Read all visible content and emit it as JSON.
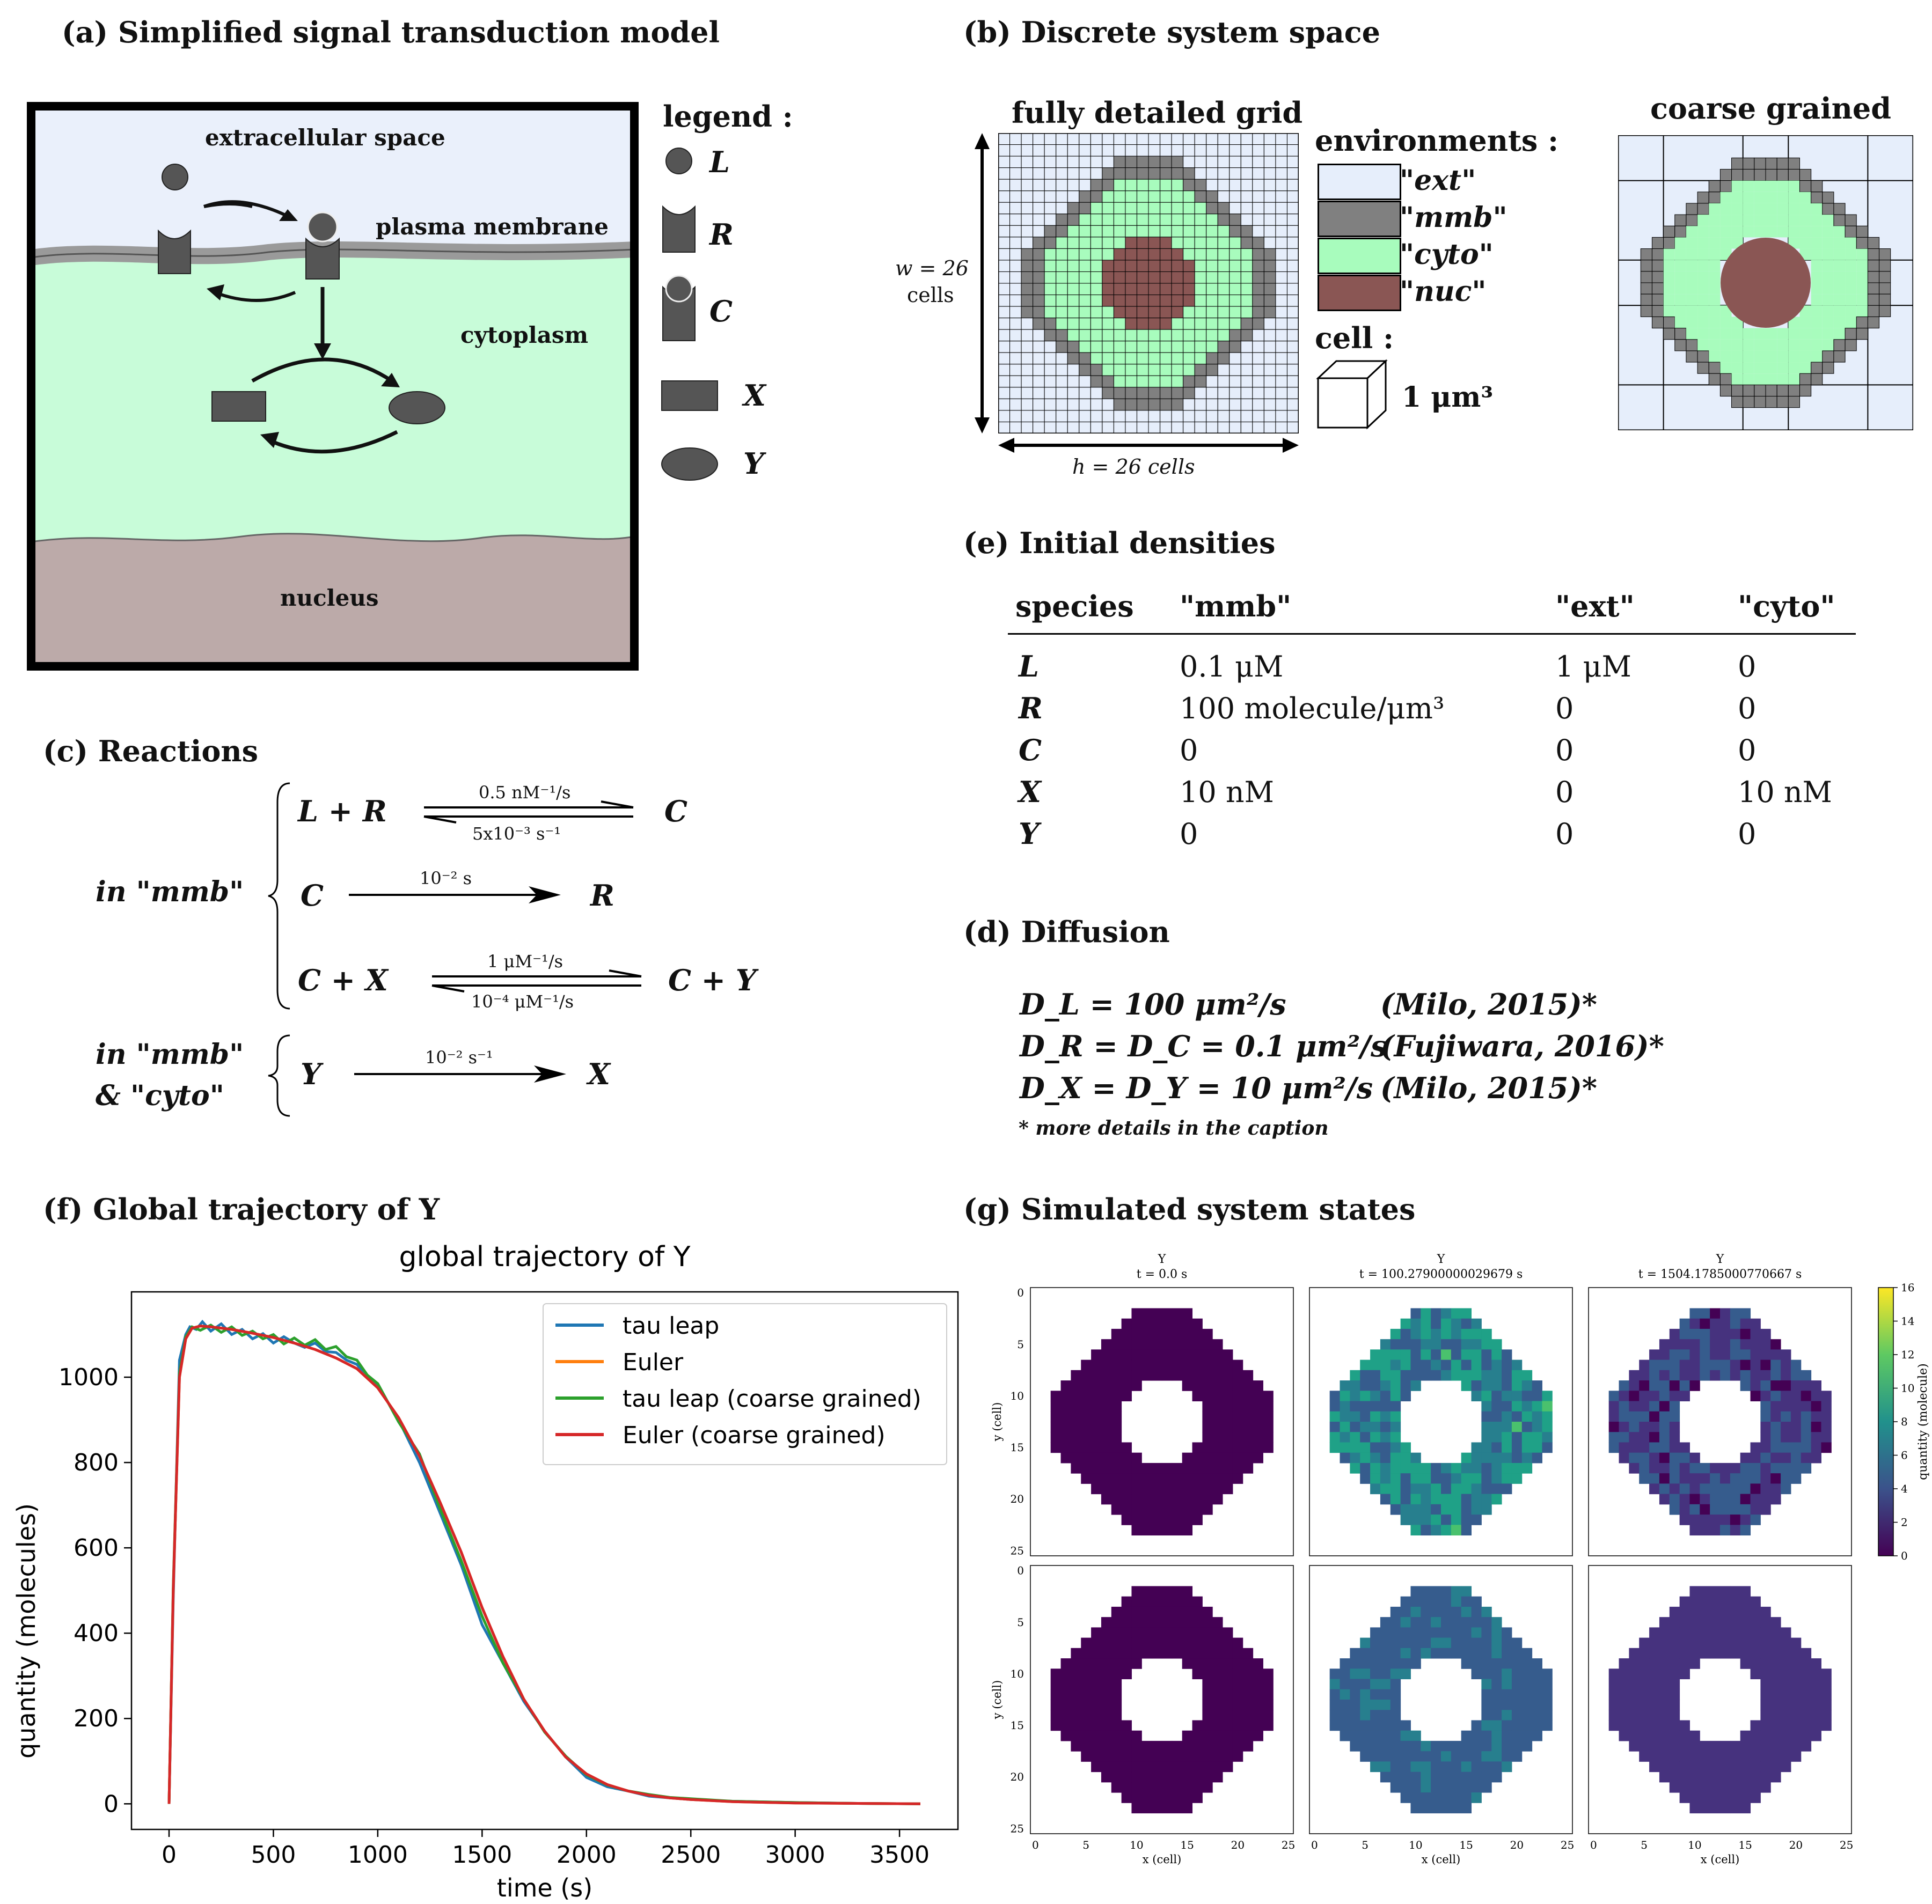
{
  "panels": {
    "a": {
      "title": "(a) Simplified signal transduction model",
      "regions": [
        "extracellular space",
        "plasma membrane",
        "cytoplasm",
        "nucleus"
      ],
      "legend_title": "legend :",
      "legend": [
        "L",
        "R",
        "C",
        "X",
        "Y"
      ],
      "colors": {
        "extracellular": "#eaf0fb",
        "cytoplasm": "#c8fcd9",
        "nucleus": "#bcaaa9",
        "membrane": "#9a9a9a",
        "molecule": "#555555"
      }
    },
    "b": {
      "title": "(b) Discrete system space",
      "grid_title": "fully detailed grid",
      "coarse_title": "coarse grained",
      "w_label": "w = 26",
      "w_unit": "cells",
      "h_label": "h = 26 cells",
      "env_title": "environments :",
      "environments": [
        {
          "name": "\"ext\"",
          "color": "#e6eefb"
        },
        {
          "name": "\"mmb\"",
          "color": "#808080"
        },
        {
          "name": "\"cyto\"",
          "color": "#a8fcbd"
        },
        {
          "name": "\"nuc\"",
          "color": "#8a5654"
        }
      ],
      "cell_title": "cell :",
      "cell_size": "1 μm³"
    },
    "c": {
      "title": "(c) Reactions",
      "group1": "in \"mmb\"",
      "group2a": "in \"mmb\"",
      "group2b": "& \"cyto\"",
      "reactions": [
        {
          "lhs": "L + R",
          "rhs": "C",
          "fwd": "0.5 nM⁻¹/s",
          "rev": "5x10⁻³ s⁻¹"
        },
        {
          "lhs": "C",
          "rhs": "R",
          "fwd": "10⁻² s",
          "rev": ""
        },
        {
          "lhs": "C + X",
          "rhs": "C + Y",
          "fwd": "1 μM⁻¹/s",
          "rev": "10⁻⁴ μM⁻¹/s"
        },
        {
          "lhs": "Y",
          "rhs": "X",
          "fwd": "10⁻² s⁻¹",
          "rev": ""
        }
      ]
    },
    "e": {
      "title": "(e) Initial densities",
      "columns": [
        "species",
        "\"mmb\"",
        "\"ext\"",
        "\"cyto\""
      ],
      "rows": [
        [
          "L",
          "0.1 μM",
          "1 μM",
          "0"
        ],
        [
          "R",
          "100 molecule/μm³",
          "0",
          "0"
        ],
        [
          "C",
          "0",
          "0",
          "0"
        ],
        [
          "X",
          "10 nM",
          "0",
          "10 nM"
        ],
        [
          "Y",
          "0",
          "0",
          "0"
        ]
      ]
    },
    "d": {
      "title": "(d) Diffusion",
      "lines": [
        {
          "eq": "D_L = 100 μm²/s",
          "ref": "(Milo, 2015)*"
        },
        {
          "eq": "D_R = D_C = 0.1 μm²/s",
          "ref": "(Fujiwara, 2016)*"
        },
        {
          "eq": "D_X = D_Y = 10 μm²/s",
          "ref": "(Milo, 2015)*"
        }
      ],
      "footnote": "* more details in the caption"
    },
    "f": {
      "title": "(f) Global trajectory of Y"
    },
    "g": {
      "title": "(g) Simulated system states",
      "subplot_var": "Y",
      "times": [
        "t = 0.0 s",
        "t = 100.27900000029679 s",
        "t = 1504.1785000770667 s"
      ],
      "xlabel": "x (cell)",
      "ylabel": "y (cell)",
      "ticks": [
        "0",
        "5",
        "10",
        "15",
        "20",
        "25"
      ],
      "colorbar_label": "quantity (molecule)",
      "colorbar_ticks": [
        "0",
        "2",
        "4",
        "6",
        "8",
        "10",
        "12",
        "14",
        "16"
      ]
    }
  },
  "chart_data": {
    "type": "line",
    "title": "global trajectory of Y",
    "xlabel": "time (s)",
    "ylabel": "quantity (molecules)",
    "xlim": [
      -180,
      3780
    ],
    "ylim": [
      -60,
      1200
    ],
    "xticks": [
      0,
      500,
      1000,
      1500,
      2000,
      2500,
      3000,
      3500
    ],
    "yticks": [
      0,
      200,
      400,
      600,
      800,
      1000
    ],
    "legend_position": "top-right",
    "series": [
      {
        "name": "tau leap",
        "color": "#1f77b4",
        "x": [
          0,
          20,
          50,
          80,
          100,
          130,
          160,
          200,
          250,
          300,
          350,
          400,
          450,
          500,
          550,
          600,
          650,
          700,
          750,
          800,
          850,
          900,
          950,
          1000,
          1100,
          1200,
          1300,
          1400,
          1500,
          1600,
          1700,
          1800,
          1900,
          2000,
          2100,
          2200,
          2300,
          2400,
          2500,
          2700,
          3000,
          3300,
          3600
        ],
        "y": [
          0,
          480,
          1040,
          1100,
          1118,
          1112,
          1130,
          1108,
          1125,
          1100,
          1112,
          1090,
          1102,
          1080,
          1095,
          1080,
          1070,
          1080,
          1060,
          1058,
          1040,
          1030,
          1000,
          980,
          900,
          800,
          680,
          560,
          420,
          330,
          240,
          170,
          110,
          62,
          40,
          30,
          18,
          14,
          10,
          6,
          3,
          1,
          0
        ]
      },
      {
        "name": "Euler",
        "color": "#ff7f0e",
        "x": [
          0,
          20,
          50,
          80,
          110,
          150,
          200,
          300,
          400,
          500,
          600,
          700,
          800,
          900,
          1000,
          1100,
          1200,
          1300,
          1400,
          1500,
          1600,
          1700,
          1800,
          1900,
          2000,
          2100,
          2200,
          2300,
          2400,
          2500,
          2700,
          3000,
          3300,
          3600
        ],
        "y": [
          0,
          500,
          1000,
          1090,
          1115,
          1120,
          1118,
          1112,
          1103,
          1093,
          1080,
          1065,
          1045,
          1020,
          975,
          905,
          815,
          705,
          590,
          460,
          345,
          245,
          170,
          110,
          70,
          45,
          30,
          20,
          14,
          10,
          5,
          2,
          1,
          0
        ]
      },
      {
        "name": "tau leap (coarse grained)",
        "color": "#2ca02c",
        "x": [
          0,
          20,
          50,
          80,
          110,
          150,
          200,
          250,
          300,
          350,
          400,
          450,
          500,
          550,
          600,
          650,
          700,
          750,
          800,
          850,
          900,
          950,
          1000,
          1100,
          1200,
          1300,
          1400,
          1500,
          1600,
          1700,
          1800,
          1900,
          2000,
          2100,
          2200,
          2300,
          2400,
          2500,
          2700,
          3000,
          3300,
          3600
        ],
        "y": [
          0,
          510,
          1010,
          1095,
          1118,
          1110,
          1122,
          1105,
          1118,
          1098,
          1108,
          1090,
          1100,
          1078,
          1092,
          1075,
          1088,
          1065,
          1072,
          1048,
          1040,
          1005,
          985,
          895,
          820,
          690,
          570,
          440,
          330,
          245,
          168,
          112,
          68,
          44,
          30,
          22,
          15,
          12,
          6,
          3,
          1,
          0
        ]
      },
      {
        "name": "Euler (coarse grained)",
        "color": "#d62728",
        "x": [
          0,
          20,
          50,
          80,
          110,
          150,
          200,
          300,
          400,
          500,
          600,
          700,
          800,
          900,
          1000,
          1100,
          1200,
          1300,
          1400,
          1500,
          1600,
          1700,
          1800,
          1900,
          2000,
          2100,
          2200,
          2300,
          2400,
          2500,
          2700,
          3000,
          3300,
          3600
        ],
        "y": [
          0,
          500,
          1000,
          1090,
          1115,
          1120,
          1118,
          1112,
          1103,
          1093,
          1080,
          1065,
          1045,
          1020,
          975,
          905,
          815,
          705,
          590,
          460,
          345,
          245,
          170,
          110,
          70,
          45,
          30,
          20,
          14,
          10,
          5,
          2,
          1,
          0
        ]
      }
    ]
  }
}
